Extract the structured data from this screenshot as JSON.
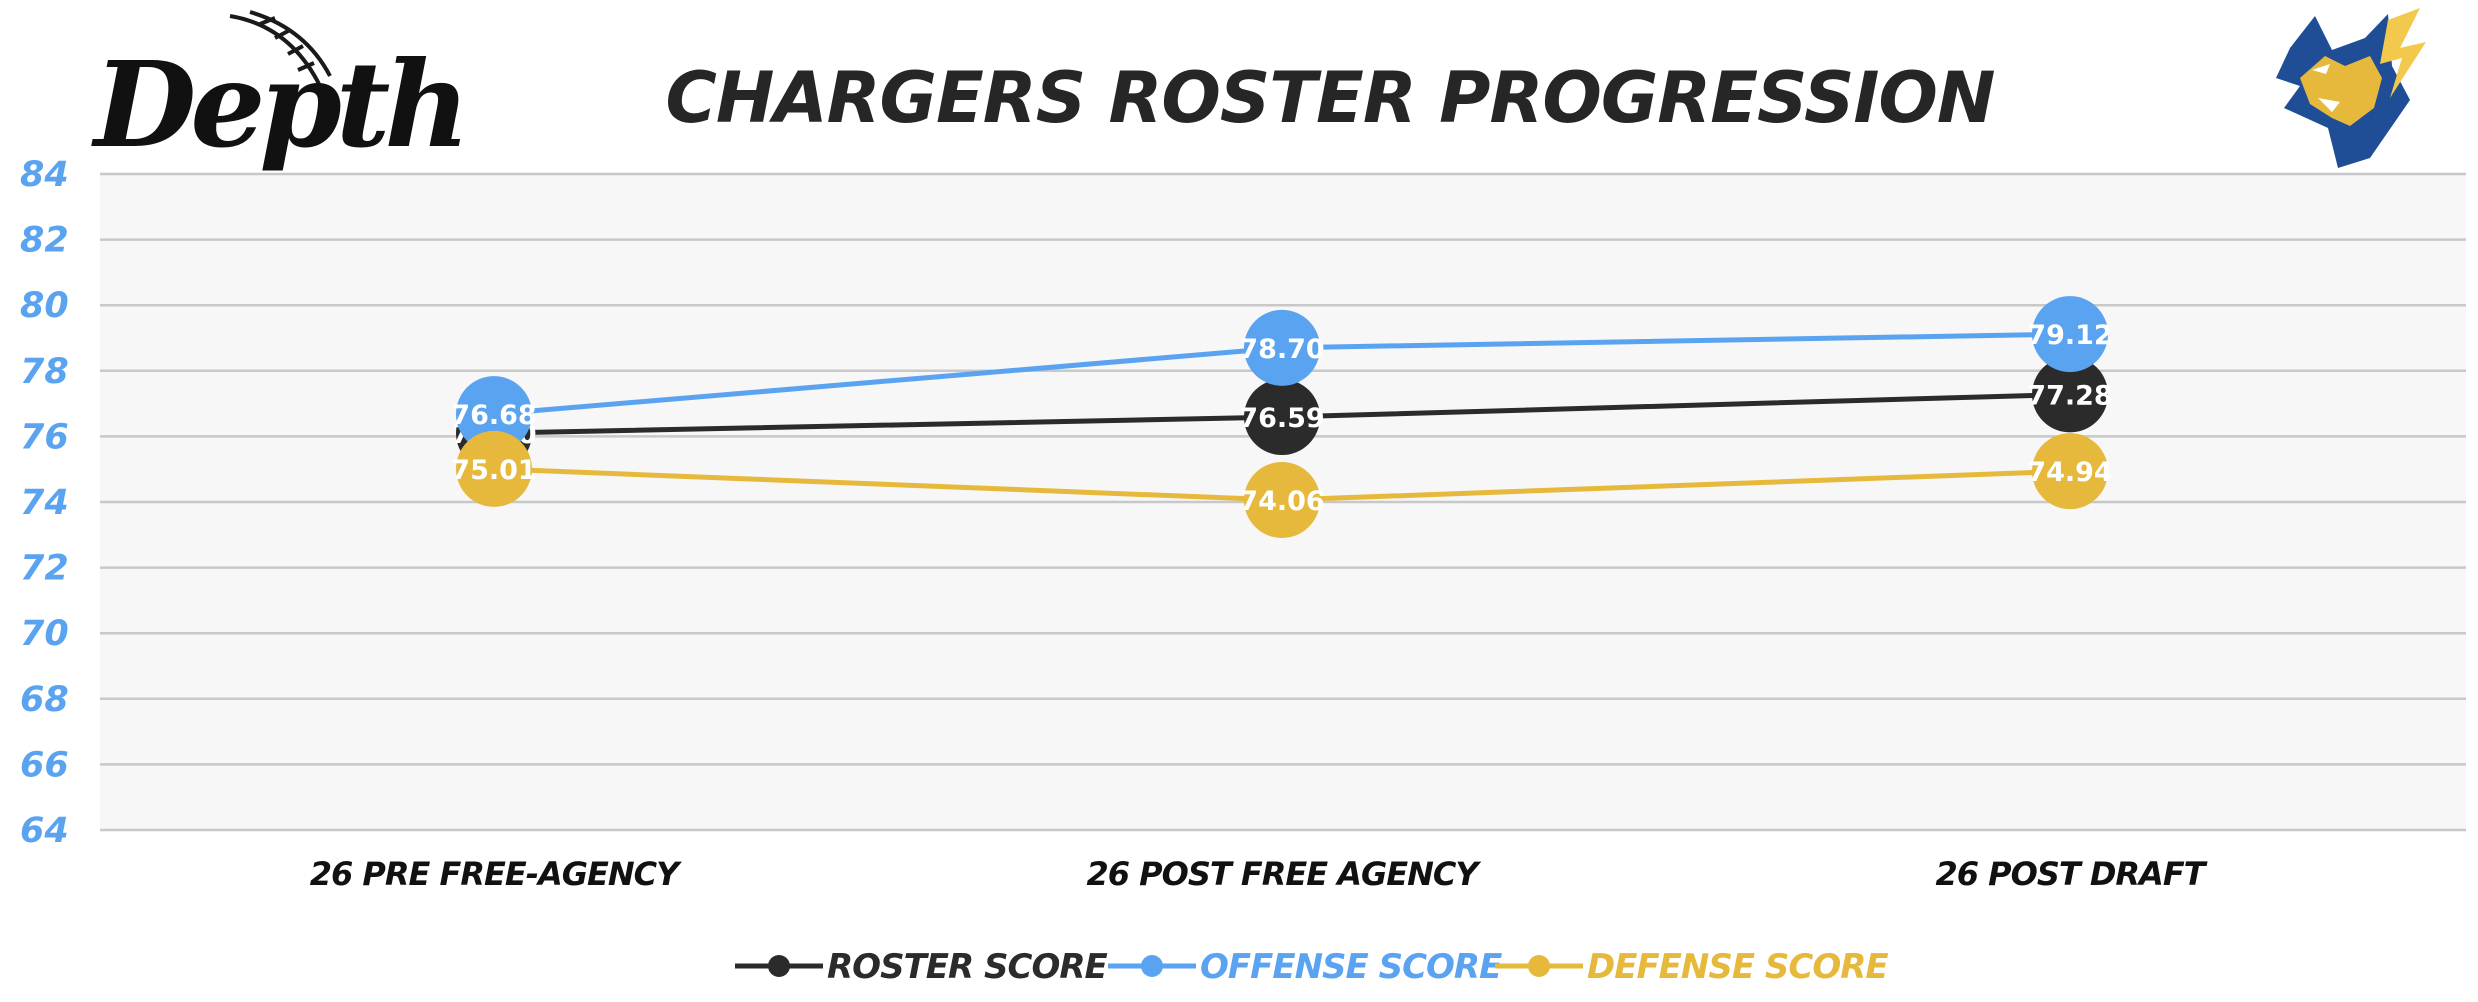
{
  "logo_left_text": "Depth",
  "chart_data": {
    "type": "line",
    "title": "CHARGERS ROSTER PROGRESSION",
    "categories": [
      "26 PRE FREE-AGENCY",
      "26 POST FREE AGENCY",
      "26 POST DRAFT"
    ],
    "ylim": [
      64,
      84
    ],
    "yticks": [
      84,
      82,
      80,
      78,
      76,
      74,
      72,
      70,
      68,
      66,
      64
    ],
    "grid": true,
    "legend_position": "bottom",
    "series": [
      {
        "name": "ROSTER SCORE",
        "color": "#2b2b2b",
        "values": [
          76.1,
          76.59,
          77.28
        ],
        "labels": [
          "76.10",
          "76.59",
          "77.28"
        ]
      },
      {
        "name": "OFFENSE SCORE",
        "color": "#5aa3f0",
        "values": [
          76.68,
          78.7,
          79.12
        ],
        "labels": [
          "76.68",
          "78.70",
          "79.12"
        ]
      },
      {
        "name": "DEFENSE SCORE",
        "color": "#e6b93c",
        "values": [
          75.01,
          74.06,
          74.94
        ],
        "labels": [
          "75.01",
          "74.06",
          "74.94"
        ]
      }
    ]
  }
}
